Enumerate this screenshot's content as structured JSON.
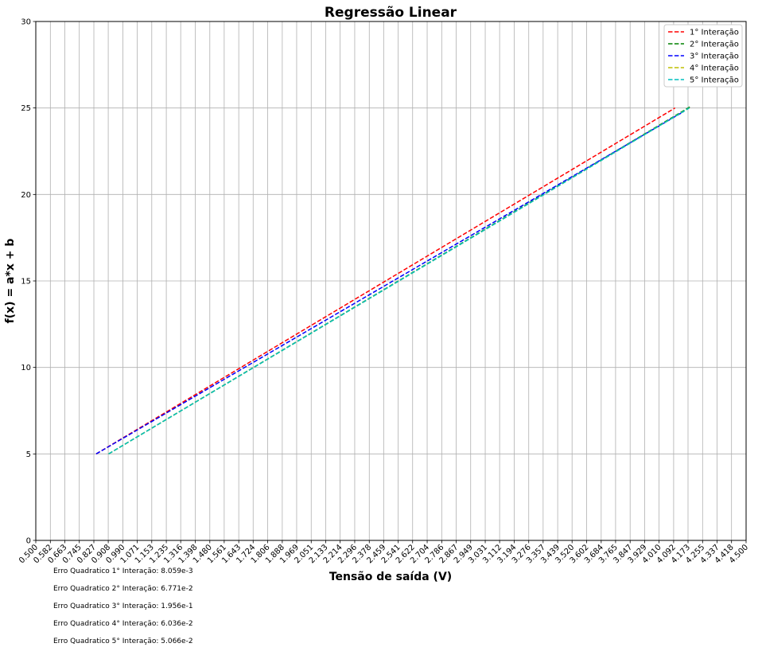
{
  "chart_data": {
    "type": "line",
    "title": "Regressão Linear",
    "xlabel": "Tensão de saída (V)",
    "ylabel": "f(x) = a*x + b",
    "xlim": [
      0.5,
      4.5
    ],
    "ylim": [
      0,
      30
    ],
    "grid": true,
    "legend_position": "top-right",
    "x_ticks": [
      "0.500",
      "0.582",
      "0.663",
      "0.745",
      "0.827",
      "0.908",
      "0.990",
      "1.071",
      "1.153",
      "1.235",
      "1.316",
      "1.398",
      "1.480",
      "1.561",
      "1.643",
      "1.724",
      "1.806",
      "1.888",
      "1.969",
      "2.051",
      "2.133",
      "2.214",
      "2.296",
      "2.378",
      "2.459",
      "2.541",
      "2.622",
      "2.704",
      "2.786",
      "2.867",
      "2.949",
      "3.031",
      "3.112",
      "3.194",
      "3.276",
      "3.357",
      "3.439",
      "3.520",
      "3.602",
      "3.684",
      "3.765",
      "3.847",
      "3.929",
      "4.010",
      "4.092",
      "4.173",
      "4.255",
      "4.337",
      "4.418",
      "4.500"
    ],
    "y_ticks": [
      "0",
      "5",
      "10",
      "15",
      "20",
      "25",
      "30"
    ],
    "series": [
      {
        "name": "1° Interação",
        "color": "#ff0000",
        "x": [
          0.84,
          4.1
        ],
        "y": [
          5.0,
          25.0
        ]
      },
      {
        "name": "2° Interação",
        "color": "#008000",
        "x": [
          0.91,
          4.19
        ],
        "y": [
          5.0,
          25.1
        ]
      },
      {
        "name": "3° Interação",
        "color": "#0000ff",
        "x": [
          0.84,
          4.15
        ],
        "y": [
          5.0,
          24.8
        ]
      },
      {
        "name": "4° Interação",
        "color": "#bfbf00",
        "x": [
          0.91,
          4.18
        ],
        "y": [
          5.0,
          25.0
        ]
      },
      {
        "name": "5° Interação",
        "color": "#00bfbf",
        "x": [
          0.91,
          4.18
        ],
        "y": [
          5.0,
          25.0
        ]
      }
    ]
  },
  "errors": [
    "Erro Quadratico 1° Interação: 8.059e-3",
    "Erro Quadratico 2° Interação: 6.771e-2",
    "Erro Quadratico 3° Interação: 1.956e-1",
    "Erro Quadratico 4° Interação: 6.036e-2",
    "Erro Quadratico 5° Interação: 5.066e-2"
  ]
}
